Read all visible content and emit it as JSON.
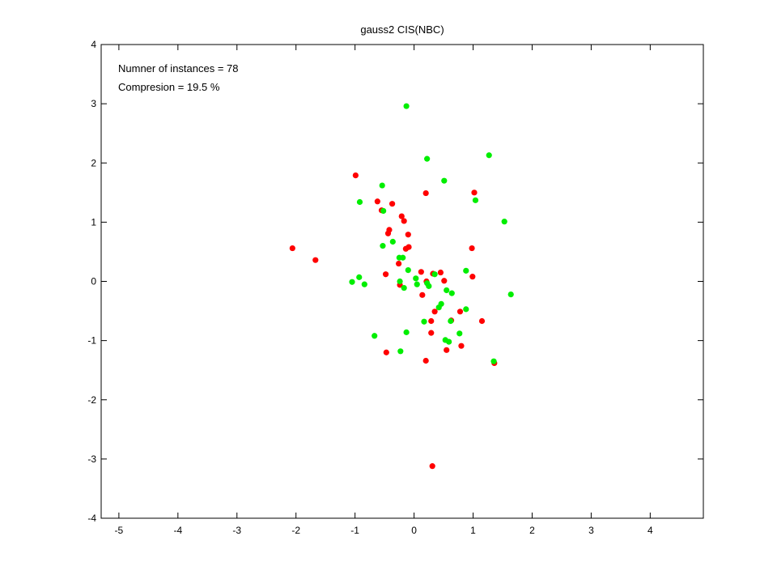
{
  "chart_data": {
    "type": "scatter",
    "title": "gauss2 CIS(NBC)",
    "xlabel": "",
    "ylabel": "",
    "xlim": [
      -5.3,
      4.9
    ],
    "ylim": [
      -4,
      4
    ],
    "xticks": [
      -5,
      -4,
      -3,
      -2,
      -1,
      0,
      1,
      2,
      3,
      4
    ],
    "yticks": [
      -4,
      -3,
      -2,
      -1,
      0,
      1,
      2,
      3,
      4
    ],
    "grid": false,
    "annotations": [
      "Numner of instances = 78",
      "Compresion = 19.5 %"
    ],
    "series": [
      {
        "color": "#ff0000",
        "points": [
          [
            -2.06,
            0.56
          ],
          [
            -1.67,
            0.36
          ],
          [
            -0.99,
            1.79
          ],
          [
            -0.62,
            1.35
          ],
          [
            -0.55,
            1.2
          ],
          [
            -0.44,
            0.81
          ],
          [
            -0.42,
            0.87
          ],
          [
            -0.37,
            1.31
          ],
          [
            -0.26,
            0.3
          ],
          [
            -0.21,
            1.1
          ],
          [
            -0.17,
            1.02
          ],
          [
            -0.14,
            0.55
          ],
          [
            -0.1,
            0.79
          ],
          [
            -0.09,
            0.58
          ],
          [
            -0.24,
            -0.06
          ],
          [
            0.12,
            0.16
          ],
          [
            0.14,
            -0.23
          ],
          [
            0.2,
            1.49
          ],
          [
            0.32,
            0.13
          ],
          [
            0.45,
            0.15
          ],
          [
            0.51,
            0.01
          ],
          [
            0.35,
            -0.51
          ],
          [
            0.29,
            -0.87
          ],
          [
            0.29,
            -0.67
          ],
          [
            0.2,
            -1.34
          ],
          [
            -0.47,
            -1.2
          ],
          [
            -0.48,
            0.12
          ],
          [
            0.55,
            -1.16
          ],
          [
            0.78,
            -0.51
          ],
          [
            0.8,
            -1.09
          ],
          [
            0.98,
            0.56
          ],
          [
            0.99,
            0.08
          ],
          [
            1.02,
            1.5
          ],
          [
            1.15,
            -0.67
          ],
          [
            1.36,
            -1.38
          ],
          [
            0.31,
            -3.12
          ],
          [
            0.21,
            0.0
          ],
          [
            0.63,
            -0.66
          ]
        ]
      },
      {
        "color": "#00ee00",
        "points": [
          [
            -0.13,
            2.96
          ],
          [
            0.22,
            2.07
          ],
          [
            1.27,
            2.13
          ],
          [
            0.51,
            1.7
          ],
          [
            -0.54,
            1.62
          ],
          [
            -0.92,
            1.34
          ],
          [
            -0.52,
            1.19
          ],
          [
            1.04,
            1.37
          ],
          [
            1.53,
            1.01
          ],
          [
            -0.53,
            0.6
          ],
          [
            -0.36,
            0.67
          ],
          [
            -0.25,
            0.4
          ],
          [
            -0.19,
            0.4
          ],
          [
            -0.1,
            0.19
          ],
          [
            -1.05,
            -0.01
          ],
          [
            -0.93,
            0.07
          ],
          [
            -0.84,
            -0.05
          ],
          [
            -0.24,
            0.0
          ],
          [
            -0.17,
            -0.11
          ],
          [
            0.03,
            0.05
          ],
          [
            0.05,
            -0.05
          ],
          [
            0.22,
            -0.03
          ],
          [
            0.25,
            -0.08
          ],
          [
            0.55,
            -0.15
          ],
          [
            0.64,
            -0.2
          ],
          [
            0.88,
            0.18
          ],
          [
            1.64,
            -0.22
          ],
          [
            0.46,
            -0.38
          ],
          [
            0.42,
            -0.44
          ],
          [
            0.88,
            -0.47
          ],
          [
            0.17,
            -0.68
          ],
          [
            0.62,
            -0.67
          ],
          [
            -0.67,
            -0.92
          ],
          [
            -0.13,
            -0.86
          ],
          [
            0.77,
            -0.88
          ],
          [
            0.53,
            -0.99
          ],
          [
            0.59,
            -1.02
          ],
          [
            -0.23,
            -1.18
          ],
          [
            1.35,
            -1.35
          ],
          [
            0.35,
            0.12
          ]
        ]
      }
    ]
  }
}
